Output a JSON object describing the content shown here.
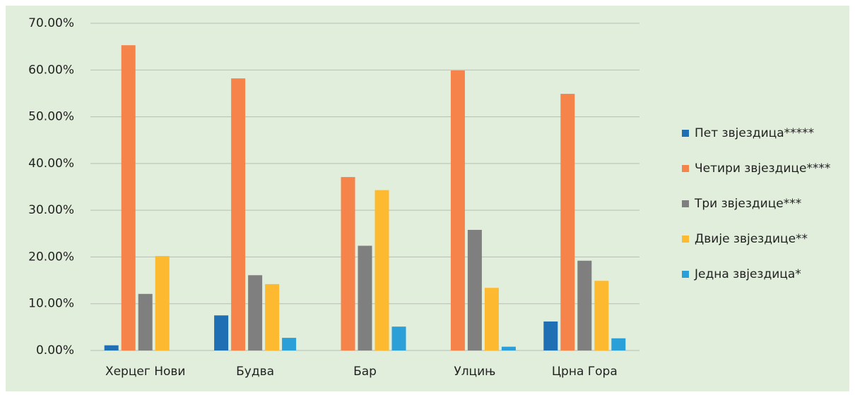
{
  "chart_data": {
    "type": "bar",
    "categories": [
      "Херцег Нови",
      "Будва",
      "Бар",
      "Улцињ",
      "Црна Гора"
    ],
    "series": [
      {
        "name": "Пет звјездица*****",
        "color": "#1f6fb5",
        "values": [
          1.1,
          7.5,
          0,
          0,
          6.2
        ]
      },
      {
        "name": "Четири звјездице****",
        "color": "#f5834a",
        "values": [
          65.3,
          58.2,
          37.1,
          59.9,
          54.9
        ]
      },
      {
        "name": "Три звјездице***",
        "color": "#7f7f80",
        "values": [
          12.1,
          16.1,
          22.4,
          25.8,
          19.2
        ]
      },
      {
        "name": "Двије звјездице**",
        "color": "#fdb92f",
        "values": [
          20.2,
          14.2,
          34.3,
          13.4,
          14.9
        ]
      },
      {
        "name": "Једна звјездица*",
        "color": "#2a9fd8",
        "values": [
          0,
          2.7,
          5.1,
          0.8,
          2.6
        ]
      }
    ],
    "ylim": [
      0,
      70
    ],
    "yticks": [
      {
        "value": 0,
        "label": "0.00%"
      },
      {
        "value": 10,
        "label": "10.00%"
      },
      {
        "value": 20,
        "label": "20.00%"
      },
      {
        "value": 30,
        "label": "30.00%"
      },
      {
        "value": 40,
        "label": "40.00%"
      },
      {
        "value": 50,
        "label": "50.00%"
      },
      {
        "value": 60,
        "label": "60.00%"
      },
      {
        "value": 70,
        "label": "70.00%"
      }
    ],
    "grid": true,
    "legend": "right"
  }
}
